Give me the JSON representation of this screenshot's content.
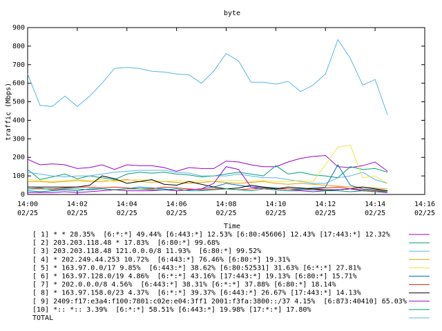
{
  "chart_data": {
    "type": "line",
    "title": "byte",
    "xlabel": "Time",
    "ylabel": "traffic (Mbps)",
    "xlim": [
      0,
      16
    ],
    "xticks": [
      {
        "value": 0,
        "label": [
          "14:00",
          "02/25"
        ]
      },
      {
        "value": 2,
        "label": [
          "14:02",
          "02/25"
        ]
      },
      {
        "value": 4,
        "label": [
          "14:04",
          "02/25"
        ]
      },
      {
        "value": 6,
        "label": [
          "14:06",
          "02/25"
        ]
      },
      {
        "value": 8,
        "label": [
          "14:08",
          "02/25"
        ]
      },
      {
        "value": 10,
        "label": [
          "14:10",
          "02/25"
        ]
      },
      {
        "value": 12,
        "label": [
          "14:12",
          "02/25"
        ]
      },
      {
        "value": 14,
        "label": [
          "14:14",
          "02/25"
        ]
      },
      {
        "value": 16,
        "label": [
          "14:16",
          "02/25"
        ]
      }
    ],
    "ylim": [
      0,
      900
    ],
    "yticks": [
      0,
      100,
      200,
      300,
      400,
      500,
      600,
      700,
      800,
      900
    ],
    "x": [
      0,
      0.5,
      1,
      1.5,
      2,
      2.5,
      3,
      3.5,
      4,
      4.5,
      5,
      5.5,
      6,
      6.5,
      7,
      7.5,
      8,
      8.5,
      9,
      9.5,
      10,
      10.5,
      11,
      11.5,
      12,
      12.5,
      13,
      13.5,
      14,
      14.5
    ],
    "series": [
      {
        "name": "[ 1] * * 28.35%  [6:*:*] 49.44% [6:443:*] 12.53% [6:80:45606] 12.43% [17:443:*] 12.32%",
        "color": "#9400d3",
        "values": [
          190,
          160,
          165,
          160,
          140,
          145,
          160,
          135,
          160,
          155,
          155,
          145,
          125,
          145,
          140,
          140,
          180,
          175,
          160,
          150,
          150,
          175,
          195,
          205,
          210,
          150,
          145,
          155,
          175,
          125
        ]
      },
      {
        "name": "[ 2] 203.203.118.48 * 17.83%  [6:80:*] 99.68%",
        "color": "#009e73",
        "values": [
          135,
          80,
          95,
          110,
          85,
          100,
          90,
          80,
          110,
          120,
          115,
          120,
          110,
          105,
          95,
          100,
          110,
          120,
          110,
          100,
          155,
          110,
          120,
          105,
          100,
          90,
          150,
          135,
          140,
          120
        ]
      },
      {
        "name": "[ 3] 203.203.118.48 121.0.0.0/8 11.93%  [6:80:*] 99.52%",
        "color": "#56b4e9",
        "values": [
          120,
          110,
          100,
          95,
          100,
          100,
          110,
          120,
          125,
          130,
          130,
          130,
          120,
          115,
          100,
          100,
          100,
          110,
          100,
          90,
          90,
          80,
          70,
          60,
          60,
          90,
          100,
          120,
          80,
          60
        ]
      },
      {
        "name": "[ 4] * 202.249.44.253 10.72%  [6:443:*] 76.46% [6:80:*] 19.31%",
        "color": "#e69f00",
        "values": [
          70,
          70,
          65,
          70,
          75,
          70,
          70,
          75,
          80,
          70,
          65,
          70,
          65,
          60,
          65,
          70,
          65,
          60,
          65,
          70,
          60,
          55,
          60,
          55,
          50,
          45,
          40,
          40,
          35,
          30
        ]
      },
      {
        "name": "[ 5] * 163.97.0.0/17 9.85%  [6:443:*] 38.62% [6:80:52531] 31.63% [6:*:*] 27.81%",
        "color": "#f0e442",
        "values": [
          80,
          75,
          70,
          75,
          80,
          75,
          80,
          70,
          75,
          80,
          75,
          70,
          75,
          70,
          75,
          70,
          75,
          75,
          70,
          75,
          70,
          70,
          75,
          70,
          160,
          255,
          265,
          90,
          100,
          60
        ]
      },
      {
        "name": "[ 6] * 163.97.128.0/19 4.86%  [6:*:*] 43.16% [17:443:*] 19.13% [6:80:*] 15.71%",
        "color": "#0072b2",
        "values": [
          20,
          15,
          20,
          25,
          20,
          30,
          30,
          25,
          30,
          40,
          35,
          30,
          20,
          25,
          30,
          40,
          60,
          50,
          40,
          40,
          35,
          30,
          30,
          35,
          40,
          160,
          50,
          30,
          25,
          20
        ]
      },
      {
        "name": "[ 7] * 202.0.0.0/8 4.56%  [6:443:*] 38.31% [6:*:*] 37.88% [6:80:*] 18.14%",
        "color": "#e51e10",
        "values": [
          30,
          30,
          30,
          35,
          40,
          40,
          35,
          40,
          35,
          30,
          30,
          40,
          35,
          30,
          25,
          30,
          30,
          25,
          30,
          35,
          30,
          30,
          25,
          30,
          35,
          40,
          30,
          25,
          20,
          15
        ]
      },
      {
        "name": "[ 8] * 163.97.158.0/23 4.37%  [6:*:*] 39.37% [6:443:*] 26.67% [17:443:*] 14.13%",
        "color": "#000000",
        "values": [
          40,
          40,
          40,
          40,
          40,
          50,
          100,
          85,
          60,
          70,
          80,
          55,
          50,
          70,
          55,
          40,
          30,
          35,
          50,
          40,
          30,
          40,
          35,
          30,
          25,
          25,
          30,
          40,
          30,
          20
        ]
      },
      {
        "name": "[ 9] 2409:f17:e3a4:f100:7801:c02e:e04:3ff1 2001:f3fa:3800::/37 4.15%  [6:873:40410] 65.03%",
        "color": "#9400d3",
        "values": [
          10,
          10,
          10,
          15,
          10,
          15,
          20,
          25,
          20,
          20,
          20,
          25,
          20,
          25,
          30,
          60,
          150,
          135,
          40,
          30,
          25,
          20,
          20,
          15,
          20,
          25,
          30,
          20,
          15,
          10
        ]
      },
      {
        "name": "[10] *:: *:: 3.39%  [6:*:*] 58.51% [6:443:*] 19.98% [17:*:*] 17.80%",
        "color": "#009e73",
        "values": [
          30,
          35,
          25,
          30,
          30,
          25,
          30,
          25,
          30,
          30,
          25,
          25,
          30,
          20,
          20,
          25,
          30,
          25,
          20,
          30,
          25,
          20,
          25,
          25,
          20,
          20,
          15,
          20,
          15,
          15
        ]
      },
      {
        "name": "TOTAL",
        "color": "#56b4e9",
        "values": [
          650,
          480,
          475,
          530,
          475,
          530,
          600,
          680,
          685,
          680,
          665,
          660,
          650,
          645,
          600,
          665,
          760,
          720,
          605,
          605,
          595,
          610,
          555,
          590,
          650,
          835,
          735,
          590,
          620,
          430
        ]
      }
    ]
  }
}
